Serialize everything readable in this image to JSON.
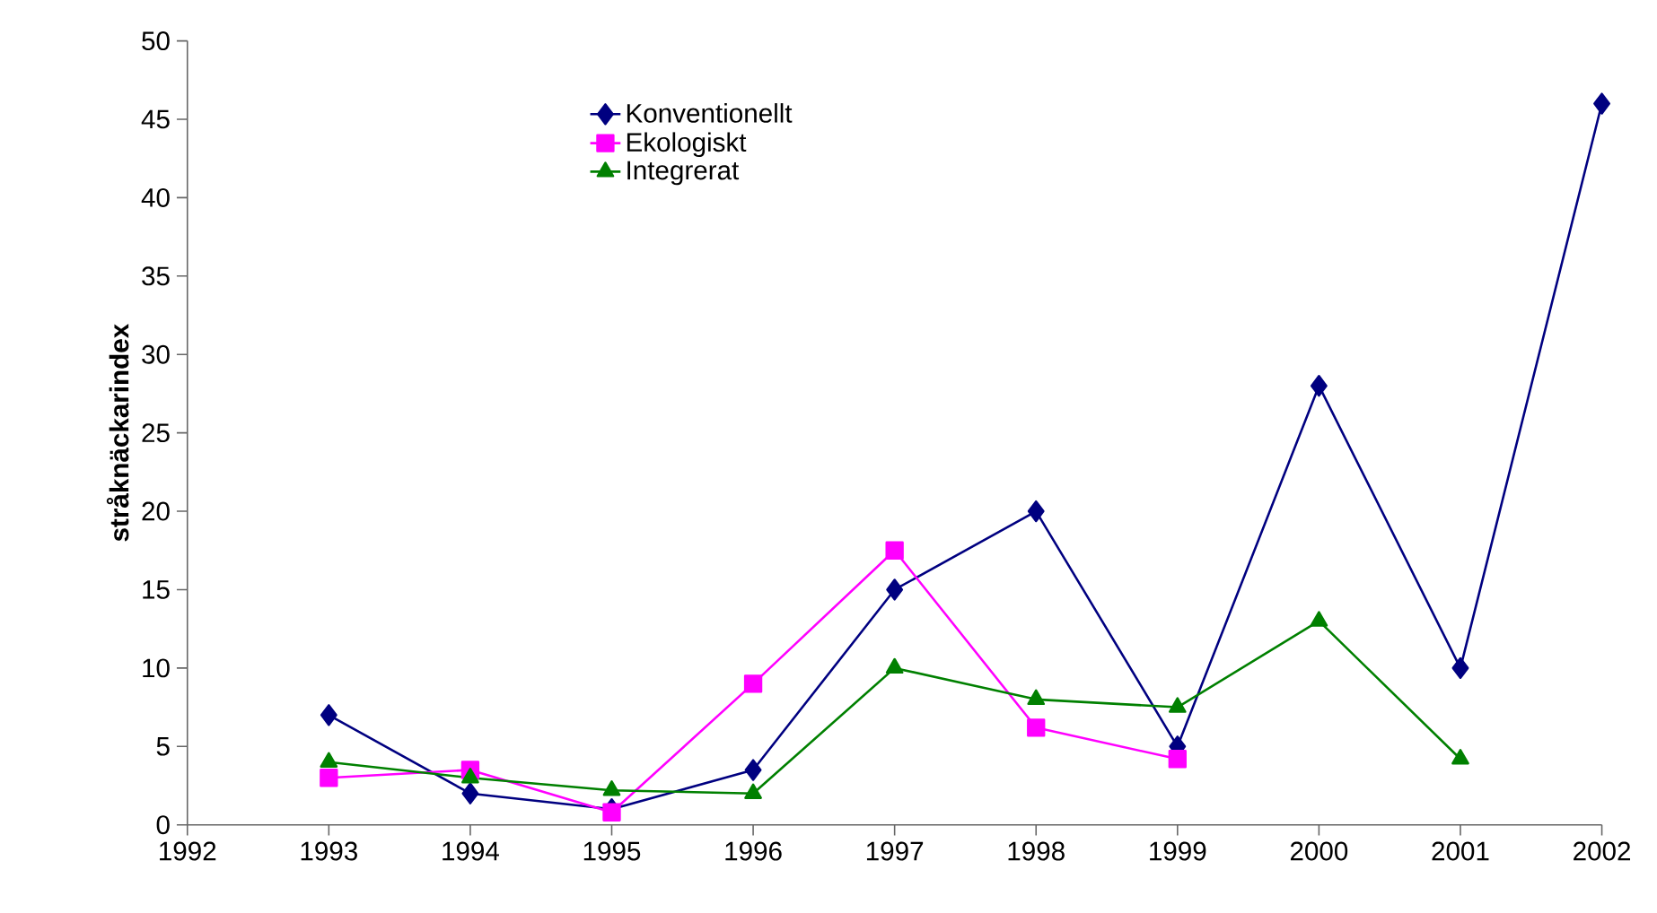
{
  "chart_data": {
    "type": "line",
    "ylabel": "stråknäckarindex",
    "x": [
      1993,
      1994,
      1995,
      1996,
      1997,
      1998,
      1999,
      2000,
      2001,
      2002
    ],
    "series": [
      {
        "name": "Konventionellt",
        "color": "#000080",
        "marker": "diamond",
        "values": [
          7,
          2,
          1,
          3.5,
          15,
          20,
          5,
          28,
          10,
          46
        ]
      },
      {
        "name": "Ekologiskt",
        "color": "#ff00ff",
        "marker": "square",
        "values": [
          3,
          3.5,
          0.8,
          9,
          17.5,
          6.2,
          4.2,
          null,
          null,
          null
        ]
      },
      {
        "name": "Integrerat",
        "color": "#008000",
        "marker": "triangle",
        "values": [
          4,
          3,
          2.2,
          2,
          10,
          8,
          7.5,
          13,
          4.2,
          null
        ]
      }
    ],
    "xlim": [
      1992,
      2002
    ],
    "xticks": [
      1992,
      1993,
      1994,
      1995,
      1996,
      1997,
      1998,
      1999,
      2000,
      2001,
      2002
    ],
    "ylim": [
      0,
      50
    ],
    "yticks": [
      0,
      5,
      10,
      15,
      20,
      25,
      30,
      35,
      40,
      45,
      50
    ],
    "grid": false,
    "legend": "top"
  }
}
